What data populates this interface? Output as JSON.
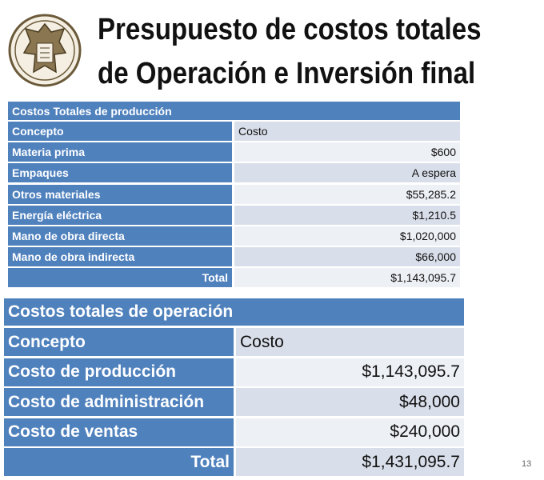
{
  "header": {
    "title_lines": [
      "Presupuesto de costos totales",
      "de Operación e Inversión final"
    ]
  },
  "production": {
    "title": "Costos Totales de producción",
    "columns": [
      "Concepto",
      "Costo"
    ],
    "rows": [
      [
        "Materia prima",
        "$600"
      ],
      [
        "Empaques",
        "A espera"
      ],
      [
        "Otros materiales",
        "$55,285.2"
      ],
      [
        "Energía eléctrica",
        "$1,210.5"
      ],
      [
        "Mano de obra directa",
        "$1,020,000"
      ],
      [
        "Mano de obra indirecta",
        "$66,000"
      ]
    ],
    "total": [
      "Total",
      "$1,143,095.7"
    ]
  },
  "operation": {
    "title": "Costos totales de operación",
    "columns": [
      "Concepto",
      "Costo"
    ],
    "rows": [
      [
        "Costo de producción",
        "$1,143,095.7"
      ],
      [
        "Costo de administración",
        "$48,000"
      ],
      [
        "Costo de ventas",
        "$240,000"
      ]
    ],
    "total": [
      "Total",
      "$1,431,095.7"
    ]
  },
  "footer": {
    "page_number": "13"
  }
}
